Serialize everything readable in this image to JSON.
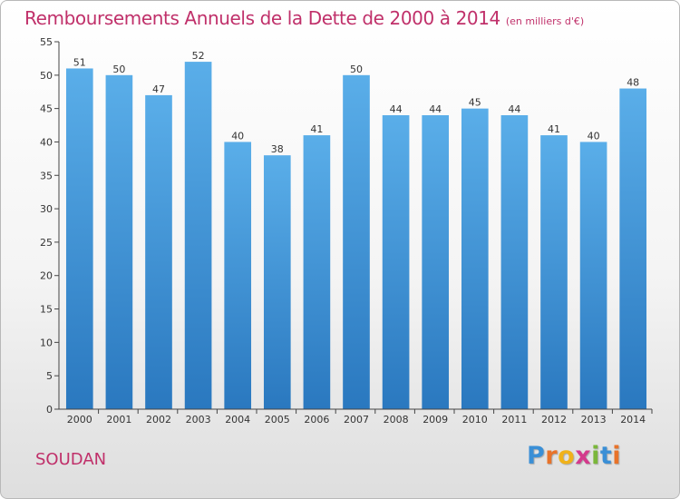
{
  "chart_data": {
    "type": "bar",
    "title": "Remboursements Annuels de la Dette de 2000 à 2014",
    "subtitle": "(en milliers d'€)",
    "categories": [
      "2000",
      "2001",
      "2002",
      "2003",
      "2004",
      "2005",
      "2006",
      "2007",
      "2008",
      "2009",
      "2010",
      "2011",
      "2012",
      "2013",
      "2014"
    ],
    "values": [
      51,
      50,
      47,
      52,
      40,
      38,
      41,
      50,
      44,
      44,
      45,
      44,
      41,
      40,
      48
    ],
    "ylim": [
      0,
      55
    ],
    "yticks": [
      0,
      5,
      10,
      15,
      20,
      25,
      30,
      35,
      40,
      45,
      50,
      55
    ],
    "xlabel": "",
    "ylabel": "",
    "grid": false,
    "bar_color_top": "#5aaee9",
    "bar_color_bottom": "#2a78bf"
  },
  "commune": "SOUDAN",
  "logo": {
    "text": "Proxiti",
    "letters": [
      {
        "ch": "P",
        "color": "#3a8fd6"
      },
      {
        "ch": "r",
        "color": "#e8732a"
      },
      {
        "ch": "o",
        "color": "#f0b21a"
      },
      {
        "ch": "x",
        "color": "#d43a8c"
      },
      {
        "ch": "i",
        "color": "#7ab73a"
      },
      {
        "ch": "t",
        "color": "#3a8fd6"
      },
      {
        "ch": "i",
        "color": "#e8732a"
      }
    ]
  },
  "colors": {
    "title": "#c0306a",
    "axis": "#333333"
  }
}
